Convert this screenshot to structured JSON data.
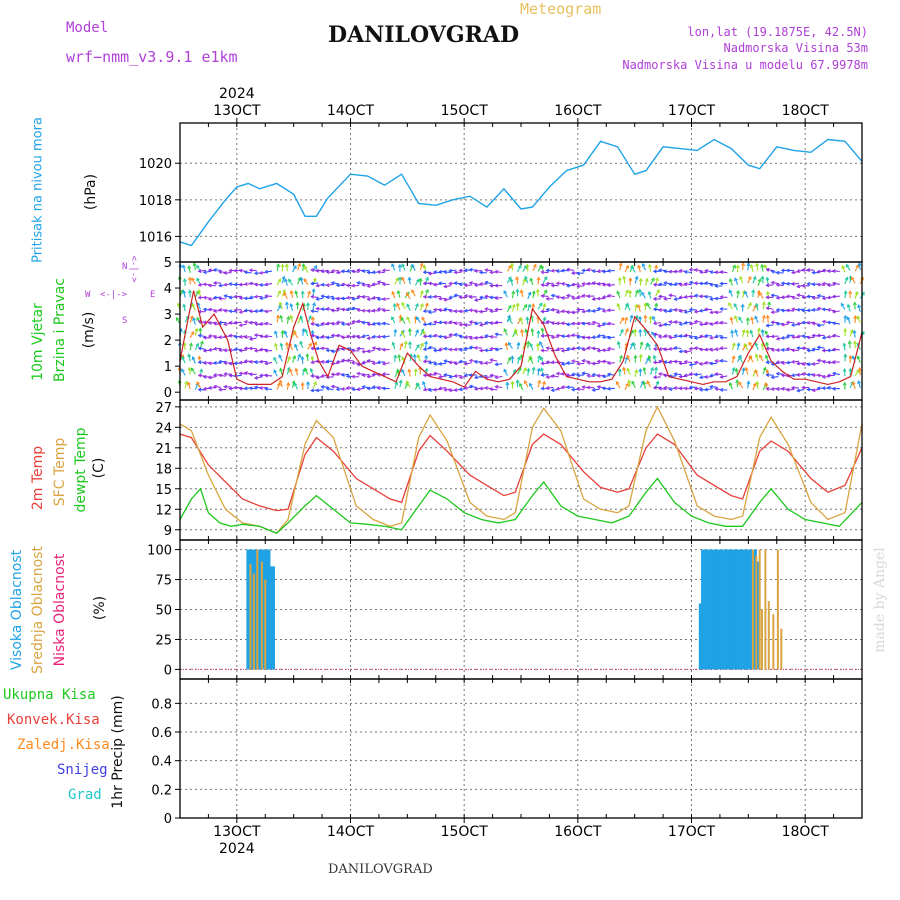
{
  "header": {
    "model_label": "Model",
    "model_value": "wrf−nmm_v3.9.1  e1km",
    "title": "DANILOVGRAD",
    "subtitle": "Meteogram",
    "coords": "lon,lat (19.1875E, 42.5N)",
    "elevation": "Nadmorska Visina 53m",
    "model_elevation": "Nadmorska Visina u modelu 67.9978m",
    "watermark": "made by Angel",
    "footer_station": "DANILOVGRAD"
  },
  "colors": {
    "pressure": "#1fa2e6",
    "wind_label": "#1ec81e",
    "temp2m": "#e8403a",
    "sfc_temp": "#d9a441",
    "dewpoint": "#1ec81e",
    "cloud_high": "#1fa2e6",
    "cloud_mid": "#d9a441",
    "cloud_low": "#e8227a",
    "precip_total": "#1ec81e",
    "precip_conv": "#e8403a",
    "precip_frozen": "#ff8a1e",
    "snow": "#4040e0",
    "hail": "#20c8c8",
    "direction_key": "#b040d8"
  },
  "axis": {
    "year": "2024",
    "date_ticks": [
      "13OCT",
      "14OCT",
      "15OCT",
      "16OCT",
      "17OCT",
      "18OCT"
    ],
    "date_tick_days": [
      13,
      14,
      15,
      16,
      17,
      18
    ],
    "x_range_days": [
      12.5,
      18.5
    ]
  },
  "panels": {
    "pressure": {
      "labels": [
        "Pritisak na nivou mora",
        "(hPa)"
      ],
      "ticks": [
        "1016",
        "1018",
        "1020"
      ],
      "tick_values": [
        1016,
        1018,
        1020
      ],
      "ylim": [
        1014.6,
        1022.2
      ]
    },
    "wind": {
      "labels": [
        "10m Vjetar",
        "Brzina i Pravac",
        "(m/s)"
      ],
      "ticks": [
        "0",
        "1",
        "2",
        "3",
        "4",
        "5"
      ],
      "tick_values": [
        0,
        1,
        2,
        3,
        4,
        5
      ],
      "ylim": [
        -0.3,
        5
      ],
      "direction_key": {
        "north": "N",
        "south": "S",
        "west": "W",
        "east": "E"
      }
    },
    "temperature": {
      "labels": [
        "2m Temp",
        "SFC Temp",
        "dewpt Temp",
        "(C)"
      ],
      "ticks": [
        "9",
        "12",
        "15",
        "18",
        "21",
        "24",
        "27"
      ],
      "tick_values": [
        9,
        12,
        15,
        18,
        21,
        24,
        27
      ],
      "ylim": [
        7.5,
        28
      ]
    },
    "clouds": {
      "labels": [
        "Visoka Oblacnost",
        "Srednja Oblacnost",
        "Niska Oblacnost",
        "(%)"
      ],
      "ticks": [
        "0",
        "25",
        "50",
        "75",
        "100"
      ],
      "tick_values": [
        0,
        25,
        50,
        75,
        100
      ],
      "ylim": [
        -8,
        108
      ]
    },
    "precip": {
      "labels": [
        "Ukupna Kisa",
        "Konvek.Kisa",
        "Zaledj.Kisa",
        "Snijeg",
        "Grad",
        "1hr Precip (mm)"
      ],
      "ticks": [
        "0",
        "0.2",
        "0.4",
        "0.6",
        "0.8"
      ],
      "tick_values": [
        0,
        0.2,
        0.4,
        0.6,
        0.8
      ],
      "ylim": [
        0,
        0.97
      ]
    }
  },
  "chart_data": [
    {
      "type": "line",
      "title": "Pritisak na nivou mora",
      "ylabel": "(hPa)",
      "x_unit": "day of October 2024",
      "ylim": [
        1014.6,
        1022.2
      ],
      "grid": true,
      "series": [
        {
          "name": "Pritisak na nivou mora",
          "x": [
            12.5,
            12.6,
            12.75,
            12.9,
            13.0,
            13.1,
            13.2,
            13.35,
            13.5,
            13.6,
            13.7,
            13.8,
            14.0,
            14.15,
            14.3,
            14.45,
            14.6,
            14.75,
            14.9,
            15.05,
            15.2,
            15.35,
            15.5,
            15.6,
            15.75,
            15.9,
            16.05,
            16.2,
            16.35,
            16.5,
            16.6,
            16.75,
            16.9,
            17.05,
            17.2,
            17.35,
            17.5,
            17.6,
            17.75,
            17.9,
            18.05,
            18.2,
            18.35,
            18.5
          ],
          "y": [
            1015.7,
            1015.5,
            1016.8,
            1018.0,
            1018.7,
            1018.9,
            1018.6,
            1018.9,
            1018.3,
            1017.1,
            1017.1,
            1018.1,
            1019.4,
            1019.3,
            1018.8,
            1019.4,
            1017.8,
            1017.7,
            1018.0,
            1018.2,
            1017.6,
            1018.6,
            1017.5,
            1017.6,
            1018.7,
            1019.6,
            1019.9,
            1021.2,
            1020.9,
            1019.4,
            1019.6,
            1020.9,
            1020.8,
            1020.7,
            1021.3,
            1020.8,
            1019.9,
            1019.7,
            1020.9,
            1020.7,
            1020.6,
            1021.3,
            1021.2,
            1020.1
          ]
        }
      ]
    },
    {
      "type": "line",
      "title": "10m Vjetar Brzina i Pravac",
      "ylabel": "(m/s)",
      "x_unit": "day of October 2024",
      "ylim": [
        -0.3,
        5
      ],
      "grid": true,
      "series": [
        {
          "name": "10m Vjetar Brzina",
          "x": [
            12.5,
            12.62,
            12.7,
            12.8,
            12.92,
            13.0,
            13.1,
            13.2,
            13.3,
            13.4,
            13.5,
            13.58,
            13.65,
            13.72,
            13.8,
            13.9,
            14.0,
            14.1,
            14.2,
            14.3,
            14.4,
            14.5,
            14.6,
            14.7,
            14.8,
            14.9,
            15.0,
            15.1,
            15.2,
            15.3,
            15.4,
            15.5,
            15.6,
            15.7,
            15.8,
            15.9,
            16.0,
            16.1,
            16.2,
            16.3,
            16.4,
            16.5,
            16.6,
            16.7,
            16.8,
            16.9,
            17.0,
            17.1,
            17.2,
            17.3,
            17.4,
            17.5,
            17.6,
            17.7,
            17.8,
            17.9,
            18.0,
            18.1,
            18.2,
            18.3,
            18.4,
            18.5
          ],
          "y": [
            1.2,
            3.9,
            2.5,
            3.0,
            2.0,
            0.5,
            0.3,
            0.3,
            0.3,
            0.6,
            2.5,
            3.4,
            2.2,
            1.2,
            0.6,
            1.8,
            1.6,
            1.0,
            0.8,
            0.6,
            0.4,
            1.5,
            1.0,
            0.6,
            0.5,
            0.4,
            0.2,
            0.8,
            0.5,
            0.4,
            0.5,
            1.0,
            3.2,
            2.6,
            1.4,
            0.6,
            0.5,
            0.4,
            0.4,
            0.5,
            1.2,
            2.9,
            2.4,
            1.8,
            0.6,
            0.5,
            0.4,
            0.3,
            0.4,
            0.4,
            0.6,
            1.5,
            2.2,
            1.2,
            0.8,
            0.5,
            0.5,
            0.4,
            0.3,
            0.4,
            0.6,
            2.3
          ]
        }
      ]
    },
    {
      "type": "line",
      "title": "2m Temp / SFC Temp / dewpt Temp",
      "ylabel": "(C)",
      "x_unit": "day of October 2024",
      "ylim": [
        7.5,
        28
      ],
      "grid": true,
      "series": [
        {
          "name": "2m Temp",
          "x": [
            12.5,
            12.6,
            12.75,
            12.9,
            13.05,
            13.2,
            13.35,
            13.45,
            13.6,
            13.7,
            13.85,
            14.05,
            14.2,
            14.35,
            14.45,
            14.6,
            14.7,
            14.85,
            15.05,
            15.2,
            15.35,
            15.45,
            15.6,
            15.7,
            15.85,
            16.05,
            16.2,
            16.35,
            16.45,
            16.6,
            16.7,
            16.85,
            17.05,
            17.2,
            17.35,
            17.45,
            17.6,
            17.7,
            17.85,
            18.05,
            18.2,
            18.35,
            18.5
          ],
          "y": [
            23.0,
            22.5,
            18.5,
            16.0,
            13.5,
            12.5,
            11.8,
            12.0,
            20.0,
            22.5,
            20.5,
            16.5,
            15.0,
            13.5,
            13.0,
            20.5,
            22.8,
            20.5,
            17.0,
            15.5,
            14.0,
            14.5,
            21.5,
            23.0,
            21.5,
            17.5,
            15.2,
            14.5,
            15.0,
            21.0,
            23.0,
            21.5,
            17.0,
            15.5,
            14.0,
            13.5,
            20.5,
            22.0,
            20.5,
            16.5,
            14.5,
            15.5,
            21.0
          ]
        },
        {
          "name": "SFC Temp",
          "x": [
            12.5,
            12.6,
            12.75,
            12.9,
            13.05,
            13.2,
            13.35,
            13.45,
            13.6,
            13.7,
            13.85,
            14.05,
            14.2,
            14.35,
            14.45,
            14.6,
            14.7,
            14.85,
            15.05,
            15.2,
            15.35,
            15.45,
            15.6,
            15.7,
            15.85,
            16.05,
            16.2,
            16.35,
            16.45,
            16.6,
            16.7,
            16.85,
            17.05,
            17.2,
            17.35,
            17.45,
            17.6,
            17.7,
            17.85,
            18.05,
            18.2,
            18.35,
            18.5
          ],
          "y": [
            24.5,
            23.5,
            17.0,
            12.0,
            10.0,
            9.5,
            8.5,
            10.5,
            21.5,
            25.0,
            22.5,
            12.5,
            10.5,
            9.5,
            10.0,
            22.5,
            25.8,
            22.0,
            13.0,
            11.0,
            10.5,
            11.5,
            24.0,
            26.8,
            23.5,
            13.5,
            12.0,
            11.5,
            12.5,
            23.5,
            27.0,
            22.0,
            12.5,
            11.0,
            10.5,
            11.0,
            22.5,
            25.5,
            21.5,
            13.0,
            10.5,
            11.5,
            24.5
          ]
        },
        {
          "name": "dewpt Temp",
          "x": [
            12.5,
            12.6,
            12.68,
            12.75,
            12.85,
            12.95,
            13.05,
            13.2,
            13.35,
            13.45,
            13.6,
            13.7,
            13.85,
            14.0,
            14.15,
            14.3,
            14.45,
            14.6,
            14.7,
            14.85,
            15.0,
            15.15,
            15.3,
            15.45,
            15.6,
            15.7,
            15.85,
            16.0,
            16.15,
            16.3,
            16.45,
            16.6,
            16.7,
            16.85,
            17.0,
            17.15,
            17.3,
            17.45,
            17.6,
            17.7,
            17.85,
            18.0,
            18.15,
            18.3,
            18.5
          ],
          "y": [
            10.5,
            13.5,
            15.0,
            11.5,
            10.0,
            9.5,
            9.8,
            9.5,
            8.5,
            10.0,
            12.5,
            14.0,
            12.0,
            10.0,
            9.8,
            9.5,
            9.0,
            12.5,
            14.8,
            13.5,
            11.5,
            10.5,
            10.0,
            10.5,
            14.0,
            16.0,
            12.5,
            11.0,
            10.5,
            10.0,
            11.0,
            14.5,
            16.5,
            13.0,
            11.0,
            10.0,
            9.5,
            9.5,
            13.0,
            15.0,
            12.0,
            10.5,
            10.0,
            9.5,
            13.0
          ]
        }
      ]
    },
    {
      "type": "bar",
      "title": "Oblacnost",
      "ylabel": "(%)",
      "x_unit": "day of October 2024",
      "ylim": [
        0,
        100
      ],
      "grid": true,
      "series": [
        {
          "name": "Visoka Oblacnost",
          "x": [
            13.1,
            13.12,
            13.14,
            13.16,
            13.18,
            13.2,
            13.22,
            13.24,
            13.26,
            13.28,
            13.3,
            13.32,
            17.08,
            17.1,
            17.12,
            17.14,
            17.16,
            17.18,
            17.2,
            17.22,
            17.24,
            17.26,
            17.28,
            17.3,
            17.32,
            17.34,
            17.36,
            17.38,
            17.4,
            17.42,
            17.44,
            17.46,
            17.48,
            17.5,
            17.52,
            17.54,
            17.56,
            17.58
          ],
          "y": [
            100,
            100,
            100,
            100,
            100,
            100,
            100,
            100,
            100,
            100,
            86,
            86,
            55,
            100,
            100,
            100,
            100,
            100,
            100,
            100,
            100,
            100,
            100,
            100,
            100,
            100,
            100,
            100,
            100,
            100,
            100,
            100,
            100,
            100,
            100,
            92,
            100,
            90
          ]
        },
        {
          "name": "Srednja Oblacnost",
          "x": [
            13.12,
            13.15,
            13.18,
            13.22,
            13.25,
            17.54,
            17.57,
            17.6,
            17.62,
            17.65,
            17.68,
            17.72,
            17.76,
            17.79
          ],
          "y": [
            88,
            80,
            100,
            90,
            75,
            100,
            95,
            100,
            50,
            100,
            57,
            46,
            100,
            34
          ]
        },
        {
          "name": "Niska Oblacnost",
          "x": [
            13.22
          ],
          "y": [
            0
          ]
        }
      ]
    },
    {
      "type": "bar",
      "title": "1hr Precip",
      "ylabel": "1hr Precip (mm)",
      "x_unit": "day of October 2024",
      "ylim": [
        0,
        0.97
      ],
      "grid": true,
      "series": [
        {
          "name": "Ukupna Kisa",
          "x": [],
          "y": []
        },
        {
          "name": "Konvek.Kisa",
          "x": [],
          "y": []
        },
        {
          "name": "Zaledj.Kisa",
          "x": [],
          "y": []
        },
        {
          "name": "Snijeg",
          "x": [],
          "y": []
        },
        {
          "name": "Grad",
          "x": [],
          "y": []
        }
      ]
    }
  ]
}
